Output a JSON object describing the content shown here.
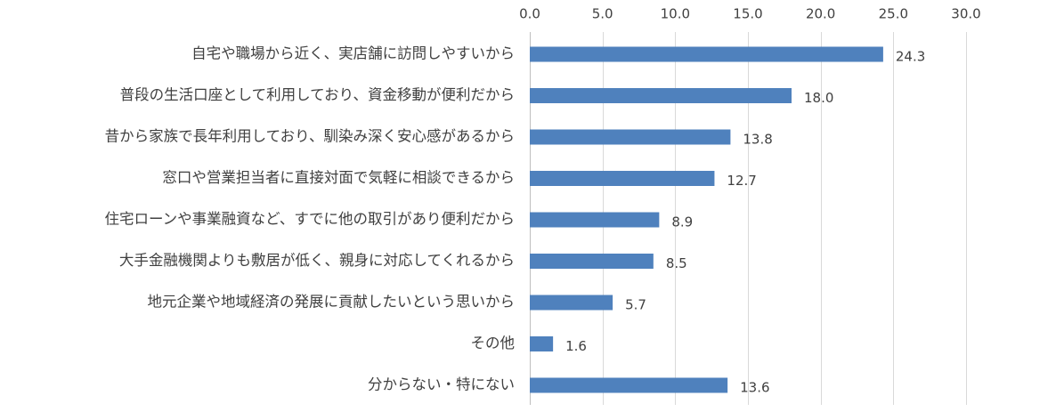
{
  "chart_data": {
    "type": "bar",
    "orientation": "horizontal",
    "categories": [
      "自宅や職場から近く、実店舗に訪問しやすいから",
      "普段の生活口座として利用しており、資金移動が便利だから",
      "昔から家族で長年利用しており、馴染み深く安心感があるから",
      "窓口や営業担当者に直接対面で気軽に相談できるから",
      "住宅ローンや事業融資など、すでに他の取引があり便利だから",
      "大手金融機関よりも敷居が低く、親身に対応してくれるから",
      "地元企業や地域経済の発展に貢献したいという思いから",
      "その他",
      "分からない・特にない"
    ],
    "values": [
      24.3,
      18.0,
      13.8,
      12.7,
      8.9,
      8.5,
      5.7,
      1.6,
      13.6
    ],
    "value_labels": [
      "24.3",
      "18.0",
      "13.8",
      "12.7",
      "8.9",
      "8.5",
      "5.7",
      "1.6",
      "13.6"
    ],
    "xlim": [
      0,
      30
    ],
    "x_ticks": [
      "0.0",
      "5.0",
      "10.0",
      "15.0",
      "20.0",
      "25.0",
      "30.0"
    ],
    "x_tick_values": [
      0,
      5,
      10,
      15,
      20,
      25,
      30
    ],
    "axis_position": "top",
    "grid": true,
    "bar_color": "#4f81bd",
    "title": "",
    "xlabel": "",
    "ylabel": ""
  }
}
